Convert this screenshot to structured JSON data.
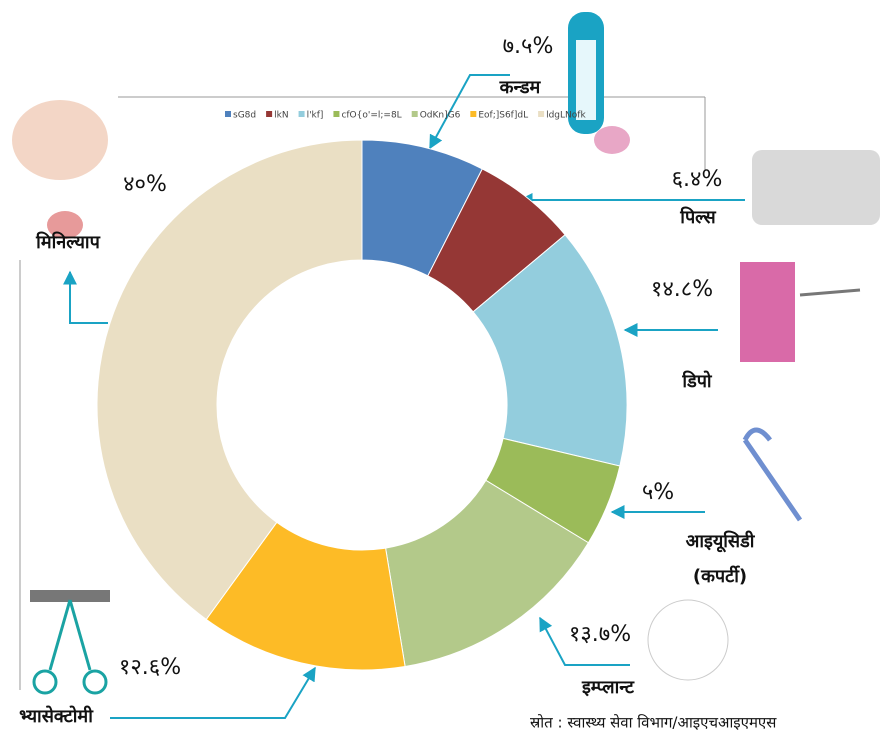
{
  "chart_data": {
    "type": "donut",
    "categories": [
      "कन्डम",
      "पिल्स",
      "डिपो",
      "आइयूसिडी",
      "इम्प्लान्ट",
      "भ्यासेक्टोमी",
      "मिनिल्याप"
    ],
    "values": [
      7.5,
      6.4,
      14.8,
      5,
      13.7,
      12.6,
      40
    ],
    "value_labels": [
      "७.५%",
      "६.४%",
      "१४.८%",
      "५%",
      "१३.७%",
      "१२.६%",
      "४०%"
    ],
    "colors": [
      "#4f81bd",
      "#953735",
      "#93cddd",
      "#9bbb59",
      "#b3c98a",
      "#fdbb26",
      "#eadfc4"
    ],
    "legend": [
      "sG8d",
      "lkN",
      "l'kf]",
      "cfO{o'=l;=8L",
      "OdKn]G6",
      "Eof;]S6f]dL",
      "ldgLNofk"
    ],
    "annotations": [
      {
        "text": "(कपर्टी)"
      }
    ],
    "source": "स्रोत : स्वास्थ्य सेवा विभाग/आइएचआइएमएस"
  }
}
